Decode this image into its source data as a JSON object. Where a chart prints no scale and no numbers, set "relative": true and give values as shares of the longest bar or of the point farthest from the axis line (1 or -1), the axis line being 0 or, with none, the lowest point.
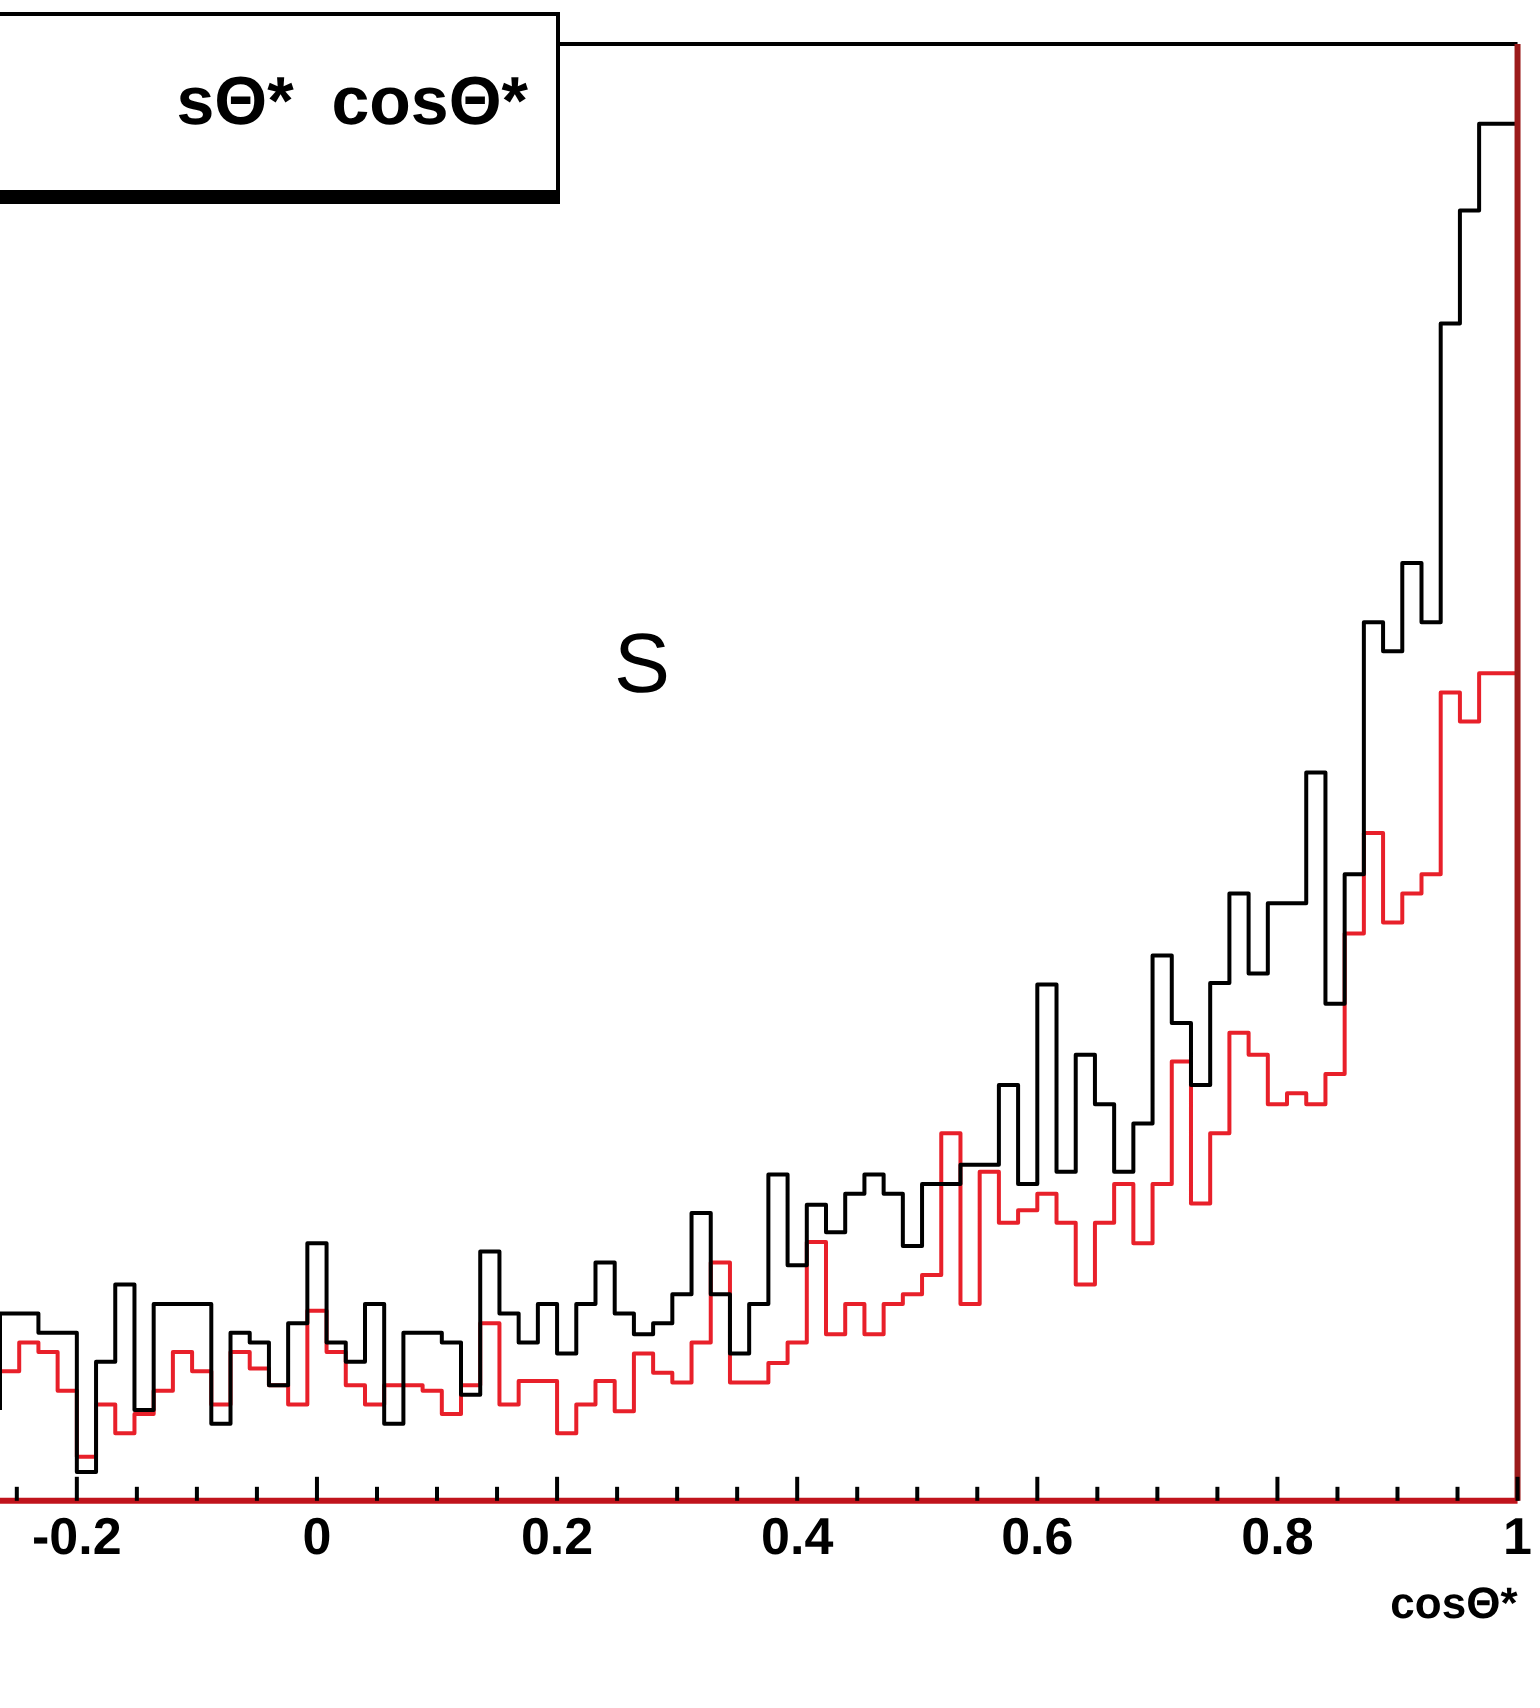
{
  "chart_data": {
    "type": "step",
    "relative": true,
    "xlabel": "cosΘ*",
    "annotations": [
      "sΘ*  cosΘ*",
      "S"
    ],
    "x": [
      -0.264,
      -0.248,
      -0.232,
      -0.216,
      -0.2,
      -0.184,
      -0.168,
      -0.152,
      -0.136,
      -0.12,
      -0.104,
      -0.088,
      -0.072,
      -0.056,
      -0.04,
      -0.024,
      -0.008,
      0.008,
      0.024,
      0.04,
      0.056,
      0.072,
      0.088,
      0.104,
      0.12,
      0.136,
      0.152,
      0.168,
      0.184,
      0.2,
      0.216,
      0.232,
      0.248,
      0.264,
      0.28,
      0.296,
      0.312,
      0.328,
      0.344,
      0.36,
      0.376,
      0.392,
      0.408,
      0.424,
      0.44,
      0.456,
      0.472,
      0.488,
      0.504,
      0.52,
      0.536,
      0.552,
      0.568,
      0.584,
      0.6,
      0.616,
      0.632,
      0.648,
      0.664,
      0.68,
      0.696,
      0.712,
      0.728,
      0.744,
      0.76,
      0.776,
      0.792,
      0.808,
      0.824,
      0.84,
      0.856,
      0.872,
      0.888,
      0.904,
      0.92,
      0.936,
      0.952,
      0.968,
      0.984,
      1.0
    ],
    "series": [
      {
        "color": "#000000",
        "values": [
          0.066,
          0.136,
          0.136,
          0.122,
          0.122,
          0.021,
          0.101,
          0.157,
          0.066,
          0.143,
          0.143,
          0.143,
          0.056,
          0.122,
          0.115,
          0.084,
          0.129,
          0.187,
          0.115,
          0.101,
          0.143,
          0.056,
          0.122,
          0.122,
          0.115,
          0.077,
          0.181,
          0.136,
          0.115,
          0.143,
          0.107,
          0.143,
          0.173,
          0.136,
          0.121,
          0.129,
          0.15,
          0.209,
          0.15,
          0.107,
          0.143,
          0.237,
          0.171,
          0.215,
          0.195,
          0.223,
          0.237,
          0.223,
          0.185,
          0.23,
          0.23,
          0.244,
          0.244,
          0.302,
          0.23,
          0.375,
          0.239,
          0.324,
          0.288,
          0.239,
          0.274,
          0.396,
          0.347,
          0.302,
          0.376,
          0.441,
          0.383,
          0.434,
          0.434,
          0.529,
          0.361,
          0.455,
          0.638,
          0.617,
          0.681,
          0.638,
          0.855,
          0.937,
          1,
          1
        ]
      },
      {
        "color": "#e8202a",
        "values": [
          0.136,
          0.094,
          0.115,
          0.108,
          0.08,
          0.032,
          0.07,
          0.049,
          0.063,
          0.08,
          0.108,
          0.094,
          0.07,
          0.108,
          0.096,
          0.084,
          0.07,
          0.138,
          0.108,
          0.084,
          0.07,
          0.084,
          0.084,
          0.08,
          0.063,
          0.084,
          0.129,
          0.07,
          0.087,
          0.087,
          0.049,
          0.07,
          0.087,
          0.065,
          0.107,
          0.093,
          0.086,
          0.115,
          0.173,
          0.086,
          0.086,
          0.1,
          0.115,
          0.188,
          0.121,
          0.143,
          0.121,
          0.143,
          0.15,
          0.164,
          0.267,
          0.143,
          0.239,
          0.202,
          0.211,
          0.223,
          0.202,
          0.157,
          0.202,
          0.23,
          0.187,
          0.23,
          0.319,
          0.216,
          0.267,
          0.34,
          0.324,
          0.288,
          0.296,
          0.288,
          0.31,
          0.412,
          0.485,
          0.42,
          0.441,
          0.455,
          0.587,
          0.566,
          0.601,
          0.601
        ]
      }
    ],
    "xlim": [
      -0.264,
      1
    ],
    "xticks": [
      {
        "value": -0.25,
        "label": null
      },
      -0.2,
      {
        "value": -0.15,
        "label": null
      },
      {
        "value": -0.1,
        "label": null
      },
      {
        "value": -0.05,
        "label": null
      },
      0,
      {
        "value": 0.05,
        "label": null
      },
      {
        "value": 0.1,
        "label": null
      },
      {
        "value": 0.15,
        "label": null
      },
      0.2,
      {
        "value": 0.25,
        "label": null
      },
      {
        "value": 0.3,
        "label": null
      },
      {
        "value": 0.35,
        "label": null
      },
      0.4,
      {
        "value": 0.45,
        "label": null
      },
      {
        "value": 0.5,
        "label": null
      },
      {
        "value": 0.55,
        "label": null
      },
      0.6,
      {
        "value": 0.65,
        "label": null
      },
      {
        "value": 0.7,
        "label": null
      },
      {
        "value": 0.75,
        "label": null
      },
      0.8,
      {
        "value": 0.85,
        "label": null
      },
      {
        "value": 0.9,
        "label": null
      },
      {
        "value": 0.95,
        "label": null
      },
      1
    ],
    "grid": false,
    "legend": false
  }
}
